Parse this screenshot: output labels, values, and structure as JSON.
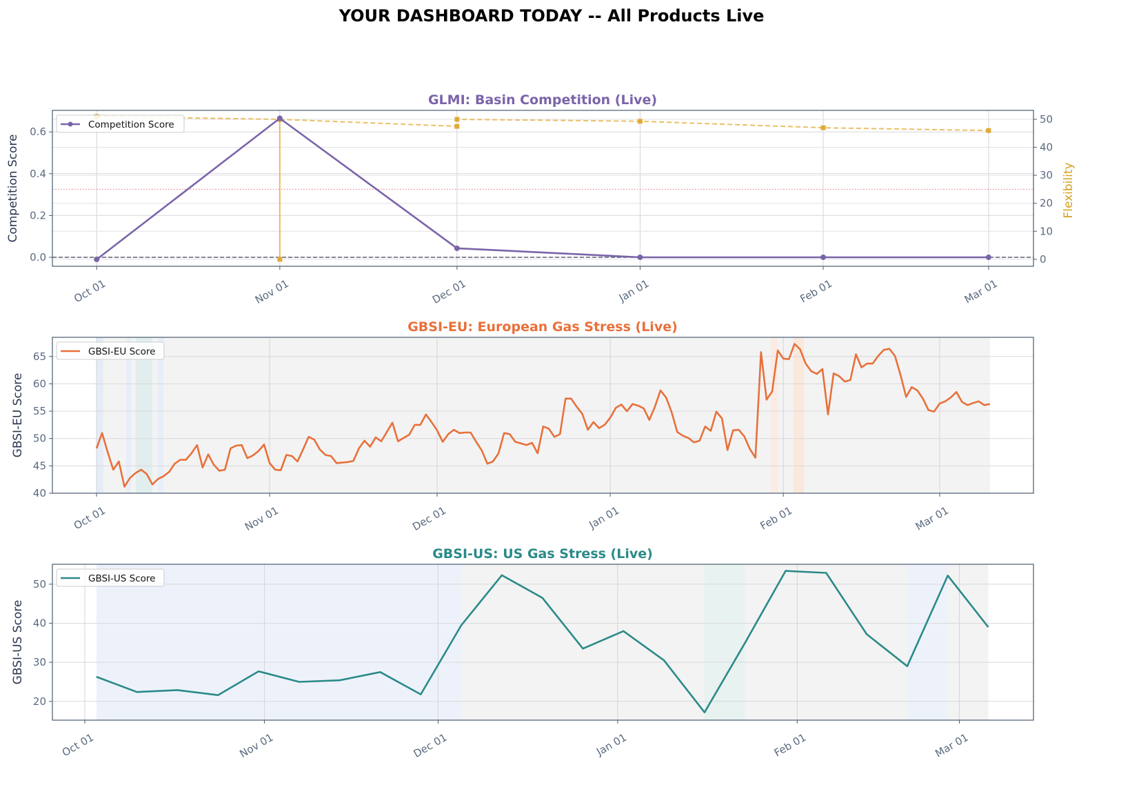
{
  "figure_title": "YOUR DASHBOARD TODAY -- All Products Live",
  "chart_data": [
    {
      "type": "line",
      "title": "GLMI: Basin Competition (Live)",
      "title_color": "#7a64a8",
      "x_unit": "days since Oct 01",
      "x_ticks": [
        {
          "x": 0,
          "label": "Oct 01"
        },
        {
          "x": 31,
          "label": "Nov 01"
        },
        {
          "x": 61,
          "label": "Dec 01"
        },
        {
          "x": 92,
          "label": "Jan 01"
        },
        {
          "x": 123,
          "label": "Feb 01"
        },
        {
          "x": 151,
          "label": "Mar 01"
        }
      ],
      "xlim": [
        -7.5,
        158.6
      ],
      "ylabel": "Competition Score",
      "ylim": [
        -0.043,
        0.703
      ],
      "y_ticks": [
        {
          "y": 0.0,
          "label": "0.0"
        },
        {
          "y": 0.2,
          "label": "0.2"
        },
        {
          "y": 0.4,
          "label": "0.4"
        },
        {
          "y": 0.6,
          "label": "0.6"
        }
      ],
      "y2label": "Flexibility",
      "y2label_color": "#d4a020",
      "y2lim": [
        -2.5,
        53.2
      ],
      "y2_ticks": [
        {
          "y": 0,
          "label": "0"
        },
        {
          "y": 10,
          "label": "10"
        },
        {
          "y": 20,
          "label": "20"
        },
        {
          "y": 30,
          "label": "30"
        },
        {
          "y": 40,
          "label": "40"
        },
        {
          "y": 50,
          "label": "50"
        }
      ],
      "grid": true,
      "legend": {
        "position": "top-left",
        "entries": [
          "Competition Score"
        ]
      },
      "series": [
        {
          "name": "Competition Score",
          "axis": "left",
          "color": "#7a64a8",
          "style": "solid",
          "marker": "circle",
          "x": [
            0,
            31,
            61,
            92,
            123,
            151
          ],
          "y": [
            -0.01,
            0.665,
            0.043,
            0.0,
            0.0,
            0.0
          ]
        },
        {
          "name": "Flexibility",
          "axis": "right",
          "color": "#e6b44a",
          "style": "dashed",
          "marker": "square",
          "x": [
            0,
            31,
            31,
            31,
            61,
            61,
            92,
            123,
            151
          ],
          "y": [
            51,
            50,
            0,
            50,
            47.5,
            50,
            49.3,
            47,
            46
          ]
        }
      ],
      "reference_lines": [
        {
          "axis": "left",
          "y": 0.0,
          "color": "#5a6070",
          "style": "dashed"
        },
        {
          "axis": "right",
          "y": 25,
          "color": "#e07070",
          "style": "dotted"
        }
      ]
    },
    {
      "type": "line",
      "title": "GBSI-EU: European Gas Stress (Live)",
      "title_color": "#e8703a",
      "x_unit": "days since Oct 01",
      "x_ticks": [
        {
          "x": 0,
          "label": "Oct 01"
        },
        {
          "x": 31,
          "label": "Nov 01"
        },
        {
          "x": 61,
          "label": "Dec 01"
        },
        {
          "x": 92,
          "label": "Jan 01"
        },
        {
          "x": 123,
          "label": "Feb 01"
        },
        {
          "x": 151,
          "label": "Mar 01"
        }
      ],
      "xlim": [
        -7.9,
        167.8
      ],
      "ylabel": "GBSI-EU Score",
      "ylim": [
        40,
        68.5
      ],
      "y_ticks": [
        {
          "y": 40,
          "label": "40"
        },
        {
          "y": 45,
          "label": "45"
        },
        {
          "y": 50,
          "label": "50"
        },
        {
          "y": 55,
          "label": "55"
        },
        {
          "y": 60,
          "label": "60"
        },
        {
          "y": 65,
          "label": "65"
        }
      ],
      "grid": true,
      "legend": {
        "position": "top-left",
        "entries": [
          "GBSI-EU Score"
        ]
      },
      "regimes": [
        {
          "start": 0,
          "end": 160,
          "color": "#f3f3f3"
        },
        {
          "start": 0,
          "end": 1.2,
          "color": "#e4ecf8"
        },
        {
          "start": 5.3,
          "end": 6.2,
          "color": "#e8eef8"
        },
        {
          "start": 7,
          "end": 10,
          "color": "#e2eeee"
        },
        {
          "start": 11,
          "end": 12,
          "color": "#e8eef8"
        },
        {
          "start": 120.8,
          "end": 122,
          "color": "#fbebe2"
        },
        {
          "start": 124.8,
          "end": 126.7,
          "color": "#fbe8dc"
        }
      ],
      "series": [
        {
          "name": "GBSI-EU Score",
          "color": "#e8703a",
          "style": "solid",
          "x_start": 0,
          "x_step": 1,
          "y": [
            48.2,
            51,
            47.5,
            44.3,
            45.8,
            41.2,
            42.8,
            43.7,
            44.3,
            43.5,
            41.6,
            42.6,
            43.1,
            43.9,
            45.4,
            46.1,
            46.1,
            47.3,
            48.8,
            44.7,
            47.1,
            45.2,
            44.1,
            44.3,
            48.2,
            48.7,
            48.8,
            46.4,
            46.9,
            47.7,
            48.9,
            45.5,
            44.3,
            44.2,
            47.0,
            46.8,
            45.8,
            48.0,
            50.3,
            49.8,
            48.0,
            47.0,
            46.8,
            45.5,
            45.6,
            45.7,
            45.9,
            48.2,
            49.6,
            48.5,
            50.2,
            49.5,
            51.2,
            52.9,
            49.5,
            50.1,
            50.7,
            52.5,
            52.5,
            54.4,
            53.0,
            51.5,
            49.4,
            50.8,
            51.6,
            51.0,
            51.1,
            51.1,
            49.4,
            47.8,
            45.4,
            45.8,
            47.3,
            51.0,
            50.8,
            49.4,
            49.1,
            48.8,
            49.2,
            47.3,
            52.2,
            51.8,
            50.3,
            50.8,
            57.3,
            57.3,
            55.8,
            54.5,
            51.6,
            53.0,
            51.9,
            52.5,
            53.8,
            55.6,
            56.2,
            55.0,
            56.3,
            56.0,
            55.5,
            53.4,
            55.8,
            58.8,
            57.5,
            54.8,
            51.2,
            50.5,
            50.1,
            49.3,
            49.6,
            52.2,
            51.4,
            54.9,
            53.7,
            47.9,
            51.5,
            51.6,
            50.4,
            48.1,
            46.5,
            65.8,
            57.1,
            58.6,
            66.1,
            64.6,
            64.5,
            67.3,
            66.3,
            63.7,
            62.3,
            61.8,
            62.7,
            54.4,
            61.9,
            61.4,
            60.4,
            60.7,
            65.4,
            63.0,
            63.7,
            63.7,
            65.1,
            66.2,
            66.4,
            65.1,
            61.6,
            57.6,
            59.4,
            58.8,
            57.3,
            55.2,
            54.9,
            56.4,
            56.8,
            57.5,
            58.5,
            56.7,
            56.1,
            56.5,
            56.8,
            56.1,
            56.3
          ]
        }
      ]
    },
    {
      "type": "line",
      "title": "GBSI-US: US Gas Stress (Live)",
      "title_color": "#2a8a88",
      "x_unit": "days since Oct 01",
      "x_ticks": [
        {
          "x": 0,
          "label": "Oct 01"
        },
        {
          "x": 31,
          "label": "Nov 01"
        },
        {
          "x": 61,
          "label": "Dec 01"
        },
        {
          "x": 92,
          "label": "Jan 01"
        },
        {
          "x": 123,
          "label": "Feb 01"
        },
        {
          "x": 151,
          "label": "Mar 01"
        }
      ],
      "xlim": [
        -5.6,
        163.8
      ],
      "ylabel": "GBSI-US Score",
      "ylim": [
        15.2,
        55.1
      ],
      "y_ticks": [
        {
          "y": 20,
          "label": "20"
        },
        {
          "y": 30,
          "label": "30"
        },
        {
          "y": 40,
          "label": "40"
        },
        {
          "y": 50,
          "label": "50"
        }
      ],
      "grid": true,
      "legend": {
        "position": "top-left",
        "entries": [
          "GBSI-US Score"
        ]
      },
      "regimes": [
        {
          "start": 2,
          "end": 65,
          "color": "#edf2fa"
        },
        {
          "start": 65,
          "end": 107,
          "color": "#f3f3f3"
        },
        {
          "start": 107,
          "end": 114,
          "color": "#e8f2f0"
        },
        {
          "start": 114,
          "end": 142,
          "color": "#f3f3f3"
        },
        {
          "start": 142,
          "end": 149,
          "color": "#edf2fa"
        },
        {
          "start": 149,
          "end": 156,
          "color": "#f3f3f3"
        }
      ],
      "series": [
        {
          "name": "GBSI-US Score",
          "color": "#2a8a88",
          "style": "solid",
          "x_start": 2,
          "x_step": 7,
          "y": [
            26.3,
            22.4,
            22.9,
            21.6,
            27.7,
            25.0,
            25.4,
            27.5,
            21.8,
            39.5,
            52.3,
            46.5,
            33.5,
            38.0,
            30.5,
            17.2,
            35.0,
            53.4,
            52.9,
            37.2,
            29.0,
            52.2,
            39.0
          ]
        }
      ]
    }
  ]
}
